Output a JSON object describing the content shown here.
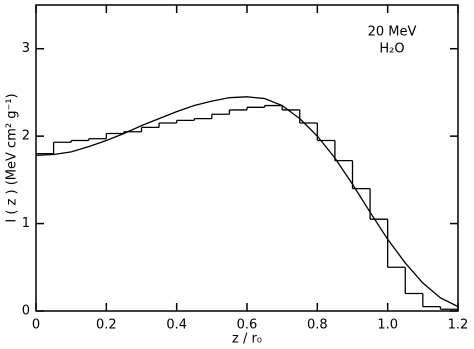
{
  "chart_data": {
    "type": "histogram",
    "ylabel": "I ( z )   (MeV cm² g⁻¹)",
    "xlabel": "z / r₀",
    "annotations": [
      "20 MeV",
      "H₂O"
    ],
    "bins": [
      0,
      0.05,
      0.1,
      0.15,
      0.2,
      0.25,
      0.3,
      0.35,
      0.4,
      0.45,
      0.5,
      0.55,
      0.6,
      0.65,
      0.7,
      0.75,
      0.8,
      0.85,
      0.9,
      0.95,
      1.0,
      1.05,
      1.1,
      1.15,
      1.2
    ],
    "counts": [
      1.8,
      1.93,
      1.95,
      1.97,
      2.03,
      2.05,
      2.1,
      2.15,
      2.18,
      2.2,
      2.25,
      2.3,
      2.33,
      2.35,
      2.3,
      2.15,
      1.95,
      1.72,
      1.4,
      1.05,
      0.5,
      0.2,
      0.05,
      0.02
    ],
    "color": "#000000",
    "curve": {
      "x": [
        0,
        0.05,
        0.1,
        0.15,
        0.2,
        0.25,
        0.3,
        0.35,
        0.4,
        0.45,
        0.5,
        0.55,
        0.6,
        0.65,
        0.7,
        0.75,
        0.8,
        0.85,
        0.9,
        0.95,
        1.0,
        1.05,
        1.1,
        1.15,
        1.2
      ],
      "values": [
        1.78,
        1.79,
        1.82,
        1.88,
        1.95,
        2.03,
        2.12,
        2.2,
        2.28,
        2.35,
        2.4,
        2.44,
        2.45,
        2.43,
        2.35,
        2.2,
        2.0,
        1.75,
        1.45,
        1.13,
        0.82,
        0.55,
        0.32,
        0.15,
        0.05
      ],
      "color": "#000000"
    },
    "xlim": [
      0,
      1.2
    ],
    "xticks": [
      0,
      0.2,
      0.4,
      0.6,
      0.8,
      {
        "value": 1,
        "label": "1.0"
      },
      1.2
    ],
    "ylim": [
      0,
      3.5
    ],
    "yticks": [
      0,
      1,
      2,
      3
    ]
  }
}
